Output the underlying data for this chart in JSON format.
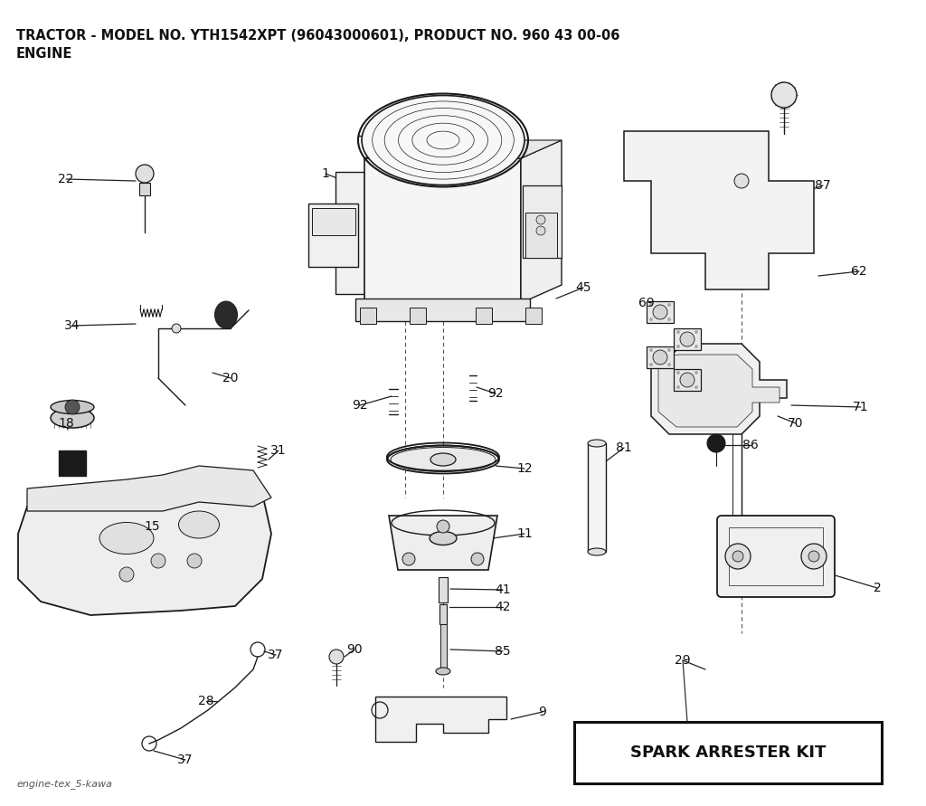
{
  "title_line1": "TRACTOR - MODEL NO. YTH1542XPT (96043000601), PRODUCT NO. 960 43 00-06",
  "title_line2": "ENGINE",
  "footer_text": "engine-tex_5-kawa",
  "spark_arrester_label": "SPARK ARRESTER KIT",
  "background_color": "#ffffff",
  "line_color": "#1a1a1a",
  "text_color": "#111111",
  "title_fontsize": 10.5,
  "label_fontsize": 10,
  "footer_fontsize": 8
}
